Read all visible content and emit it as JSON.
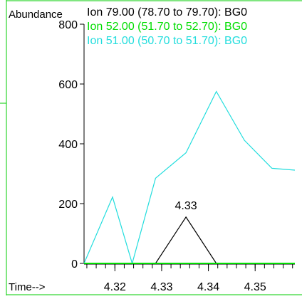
{
  "chart_data": {
    "type": "line",
    "ylabel": "Abundance",
    "xlabel": "Time-->",
    "xlim": [
      4.3134,
      4.3585
    ],
    "ylim": [
      0,
      800
    ],
    "yticks": [
      0,
      200,
      400,
      600,
      800
    ],
    "xticks": [
      4.32,
      4.33,
      4.34,
      4.35
    ],
    "x_minor_step": 0.002,
    "legend_position": "top",
    "series": [
      {
        "name": "Ion  79.00 (78.70 to 79.70): BG0",
        "color": "#000000",
        "x": [
          4.3134,
          4.3287,
          4.3352,
          4.3417,
          4.3585
        ],
        "y": [
          0,
          0,
          155,
          0,
          0
        ]
      },
      {
        "name": "Ion  52.00 (51.70 to 52.70): BG0",
        "color": "#00dd00",
        "x": [
          4.3134,
          4.3585
        ],
        "y": [
          0,
          0
        ]
      },
      {
        "name": "Ion  51.00 (50.70 to 51.70): BG0",
        "color": "#22dddd",
        "x": [
          4.3134,
          4.3195,
          4.3237,
          4.3287,
          4.3352,
          4.3417,
          4.3477,
          4.3536,
          4.3585
        ],
        "y": [
          0,
          222,
          0,
          285,
          370,
          575,
          412,
          318,
          312
        ]
      }
    ],
    "annotations": [
      {
        "text": "4.33",
        "x": 4.3352,
        "y": 155
      }
    ]
  }
}
